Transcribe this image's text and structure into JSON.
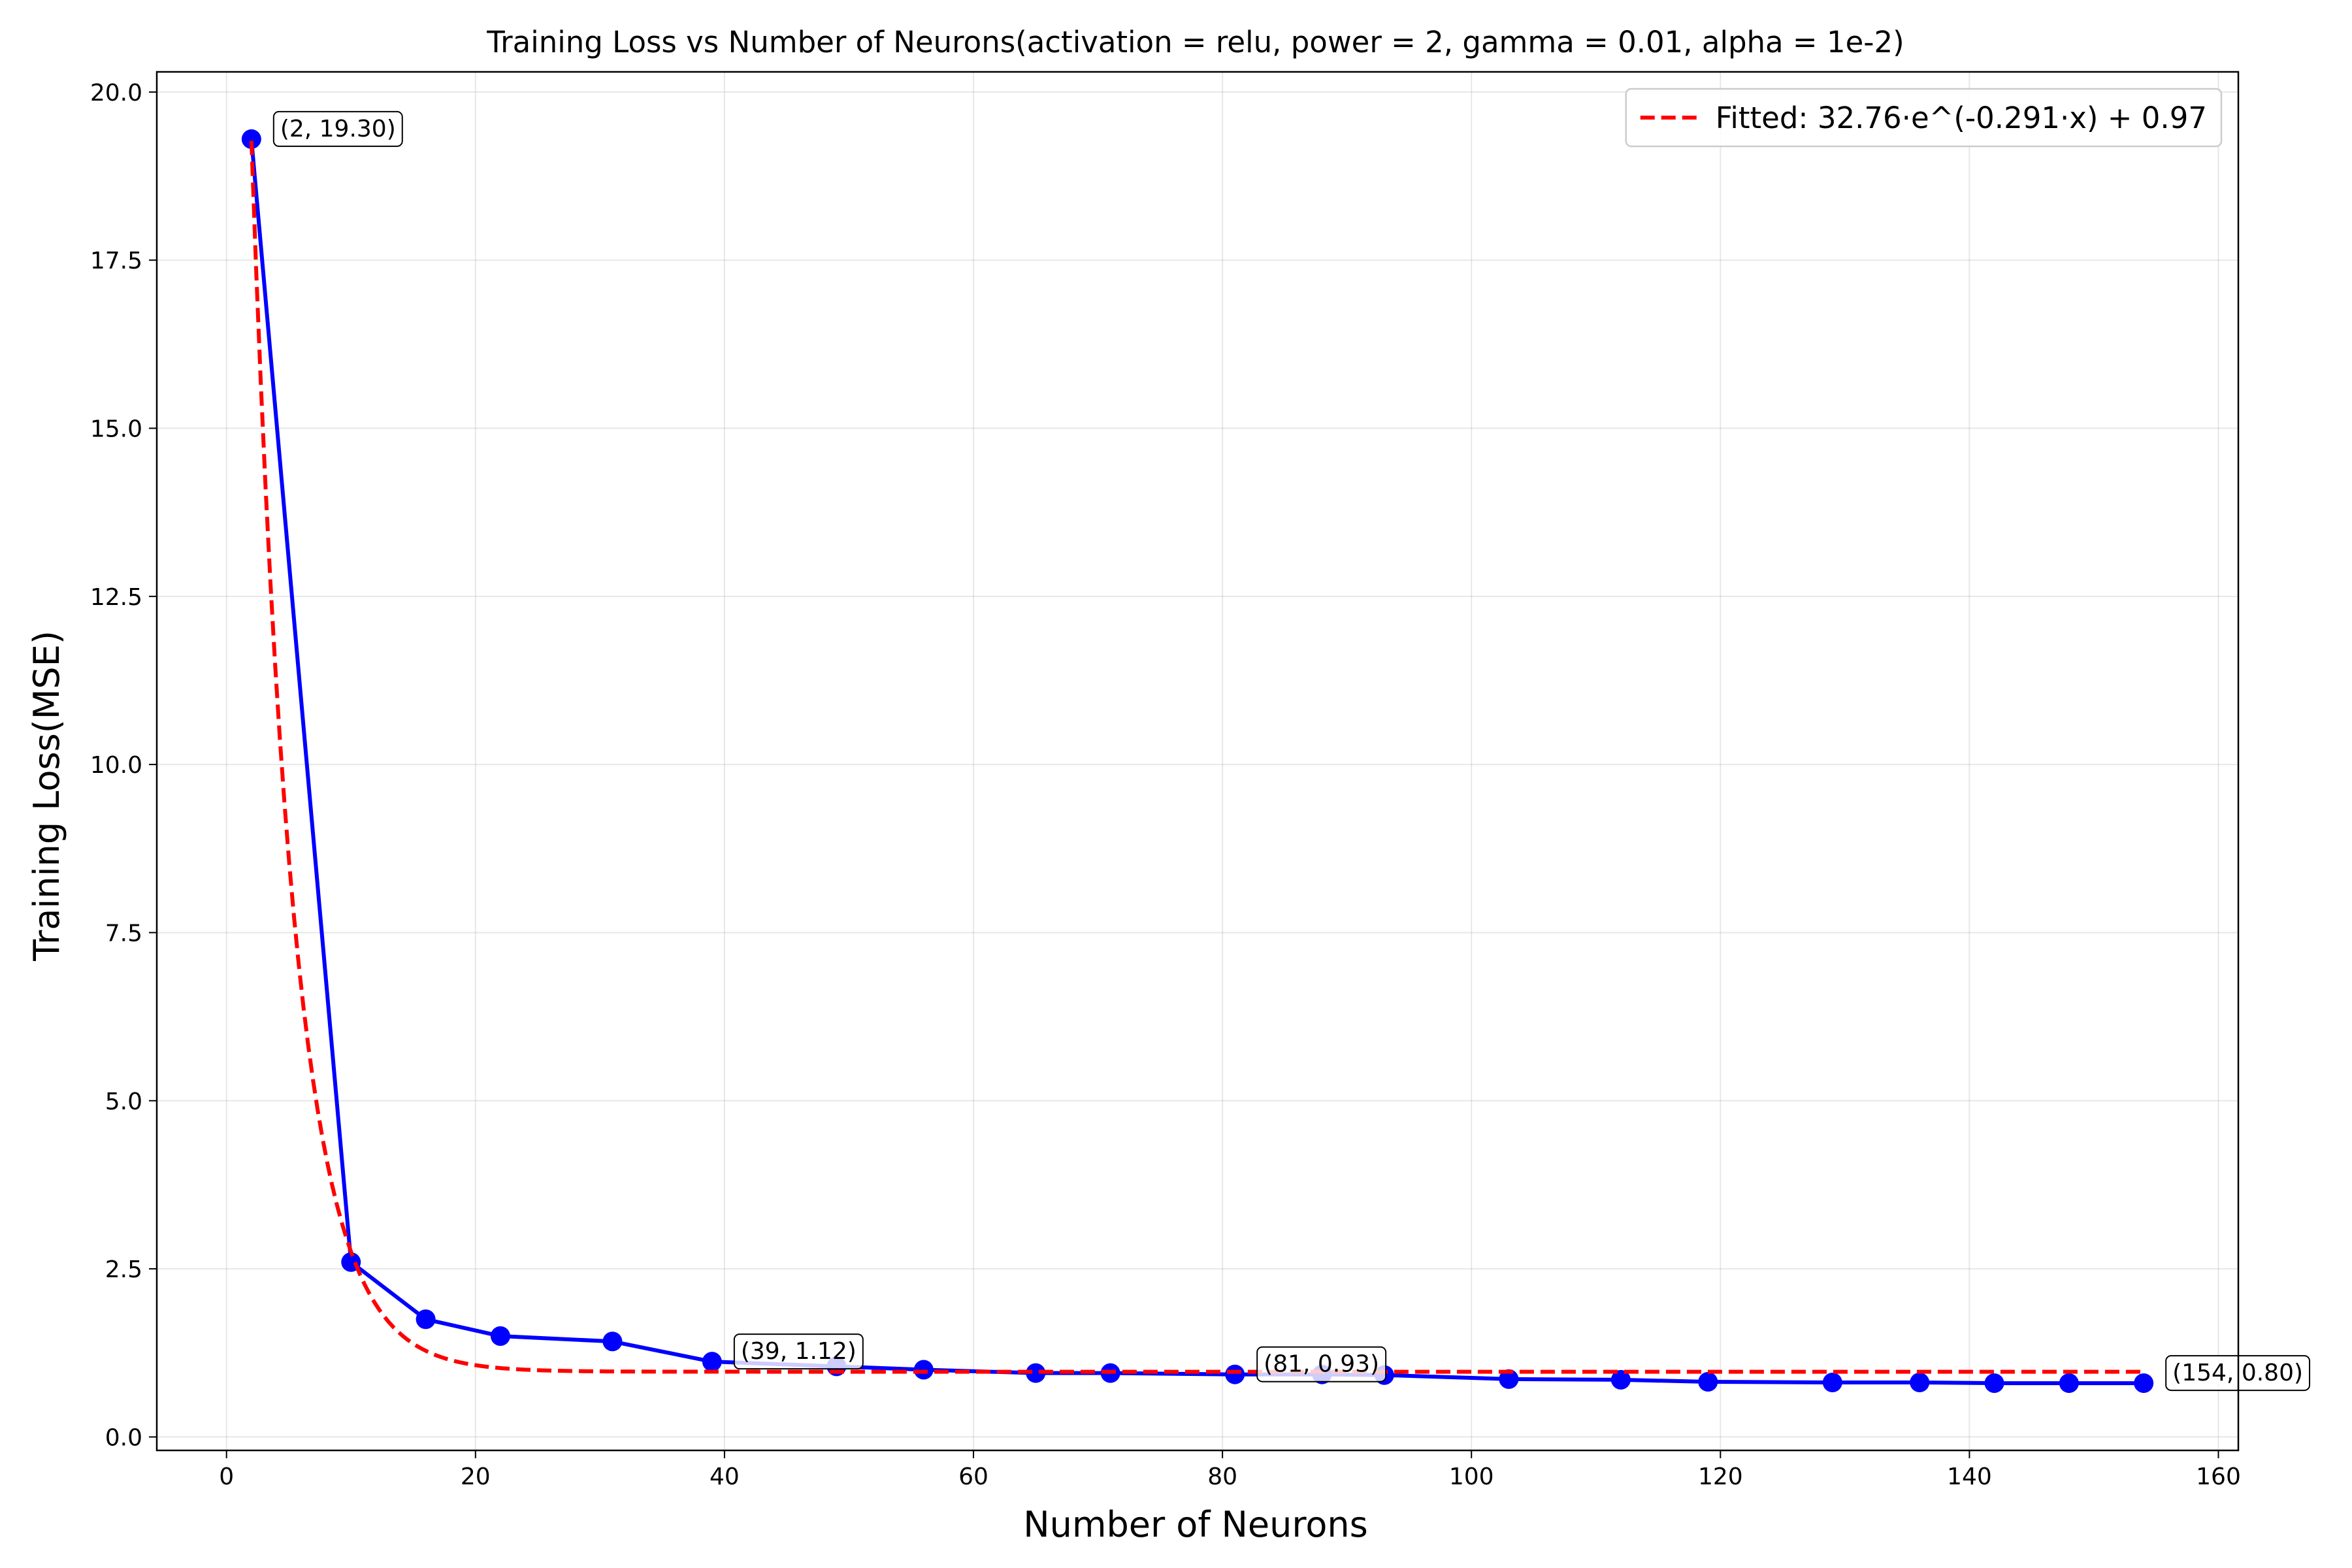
{
  "chart_data": {
    "type": "line",
    "title": "Training Loss vs Number of Neurons(activation = relu, power = 2, gamma = 0.01, alpha = 1e-2)",
    "xlabel": "Number of Neurons",
    "ylabel": "Training Loss(MSE)",
    "xlim": [
      -5.6,
      161.6
    ],
    "ylim": [
      -0.2,
      20.3
    ],
    "grid": true,
    "legend_position": "top-right",
    "xticks": [
      0,
      20,
      40,
      60,
      80,
      100,
      120,
      140,
      160
    ],
    "xtick_labels": [
      "0",
      "20",
      "40",
      "60",
      "80",
      "100",
      "120",
      "140",
      "160"
    ],
    "yticks": [
      0.0,
      2.5,
      5.0,
      7.5,
      10.0,
      12.5,
      15.0,
      17.5,
      20.0
    ],
    "ytick_labels": [
      "0.0",
      "2.5",
      "5.0",
      "7.5",
      "10.0",
      "12.5",
      "15.0",
      "17.5",
      "20.0"
    ],
    "series": [
      {
        "color": "#0000ff",
        "style": "solid-with-markers",
        "x": [
          2,
          10,
          16,
          22,
          31,
          39,
          49,
          56,
          65,
          71,
          81,
          88,
          93,
          103,
          112,
          119,
          129,
          136,
          142,
          148,
          154
        ],
        "y": [
          19.3,
          2.6,
          1.75,
          1.5,
          1.42,
          1.12,
          1.05,
          1.0,
          0.95,
          0.95,
          0.93,
          0.93,
          0.92,
          0.86,
          0.85,
          0.82,
          0.81,
          0.81,
          0.8,
          0.8,
          0.8
        ]
      },
      {
        "name": "Fitted: 32.76·e^(-0.291·x) + 0.97",
        "color": "#ff0000",
        "style": "dashed",
        "fit": {
          "a": 32.76,
          "b": 0.291,
          "c": 0.97,
          "x_start": 2,
          "x_end": 154
        }
      }
    ],
    "annotations": [
      {
        "x": 2,
        "y": 19.3,
        "text": "(2, 19.30)"
      },
      {
        "x": 39,
        "y": 1.12,
        "text": "(39, 1.12)"
      },
      {
        "x": 81,
        "y": 0.93,
        "text": "(81, 0.93)"
      },
      {
        "x": 154,
        "y": 0.8,
        "text": "(154, 0.80)"
      }
    ]
  }
}
